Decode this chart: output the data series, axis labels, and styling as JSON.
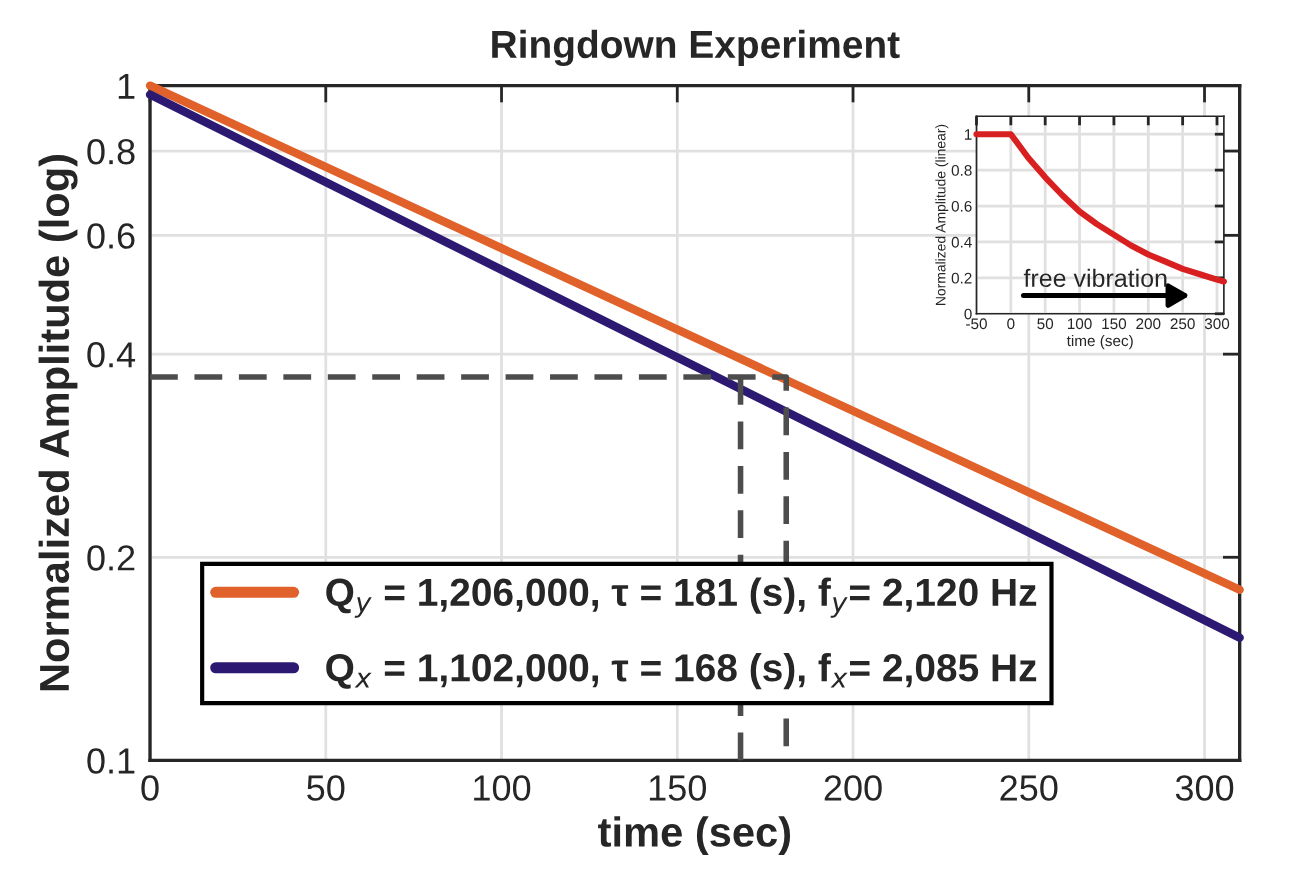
{
  "chart_data": [
    {
      "type": "line",
      "title": "Ringdown Experiment",
      "xlabel": "time (sec)",
      "ylabel": "Normalized Amplitude (log)",
      "log": "y",
      "xlim": [
        0,
        310
      ],
      "ylim": [
        0.1,
        1
      ],
      "xticks": [
        0,
        50,
        100,
        150,
        200,
        250,
        300
      ],
      "yticks": [
        0.1,
        0.2,
        0.4,
        0.6,
        0.8,
        1
      ],
      "grid": true,
      "legend": "bottom left",
      "series": [
        {
          "name": "Q$_{y}$ = 1,206,000, τ = 181 (s), f$_{y}$= 2,120 Hz",
          "color": "#e0622a",
          "x": [
            0,
            310
          ],
          "values": [
            1.0,
            0.179
          ]
        },
        {
          "name": "Q$_{x}$ = 1,102,000, τ = 168 (s), f$_{x}$= 2,085 Hz",
          "color": "#2c1a72",
          "x": [
            0,
            310
          ],
          "values": [
            0.97,
            0.152
          ]
        },
        {
          "color": "#4d4d4d",
          "line_style": "dashed",
          "x": [
            0,
            181,
            181
          ],
          "values": [
            0.37,
            0.37,
            0.1
          ]
        },
        {
          "color": "#4d4d4d",
          "line_style": "dashed",
          "x": [
            168,
            168
          ],
          "values": [
            0.37,
            0.1
          ]
        }
      ]
    },
    {
      "type": "line",
      "xlabel": "time (sec)",
      "ylabel": "Normalized Amplitude (linear)",
      "xlim": [
        -50,
        310
      ],
      "ylim": [
        0,
        1.1
      ],
      "xticks": [
        -50,
        0,
        50,
        100,
        150,
        200,
        250,
        300
      ],
      "yticks": [
        0,
        0.2,
        0.4,
        0.6,
        0.8,
        1
      ],
      "grid": true,
      "annotations": [
        "free vibration"
      ],
      "series": [
        {
          "color": "#d92020",
          "x": [
            -50,
            0,
            25,
            50,
            75,
            100,
            125,
            150,
            175,
            200,
            225,
            250,
            275,
            300,
            310
          ],
          "values": [
            1,
            1,
            0.87,
            0.76,
            0.66,
            0.57,
            0.5,
            0.44,
            0.38,
            0.33,
            0.29,
            0.25,
            0.22,
            0.19,
            0.18
          ]
        }
      ]
    }
  ]
}
